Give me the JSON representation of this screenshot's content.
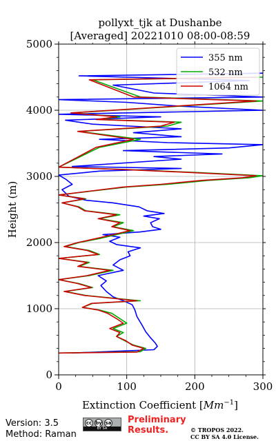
{
  "chart_data": {
    "type": "line",
    "title_line1": "pollyxt_tjk at Dushanbe",
    "title_line2": "[Averaged] 20221010 08:00-08:59",
    "xlabel": "Extinction Coefficient [Mm⁻¹]",
    "ylabel": "Height (m)",
    "xlim": [
      0,
      300
    ],
    "ylim": [
      0,
      5000
    ],
    "x_ticks": [
      "0",
      "100",
      "200",
      "300"
    ],
    "y_ticks": [
      "0",
      "1000",
      "2000",
      "3000",
      "4000",
      "5000"
    ],
    "grid": true,
    "legend_position": "top-right",
    "series": [
      {
        "name": "355 nm",
        "color": "#0000ff",
        "points": [
          [
            20,
            330
          ],
          [
            140,
            380
          ],
          [
            145,
            430
          ],
          [
            142,
            480
          ],
          [
            135,
            560
          ],
          [
            128,
            650
          ],
          [
            122,
            760
          ],
          [
            115,
            880
          ],
          [
            112,
            980
          ],
          [
            108,
            1060
          ],
          [
            95,
            1120
          ],
          [
            80,
            1180
          ],
          [
            70,
            1260
          ],
          [
            62,
            1350
          ],
          [
            70,
            1420
          ],
          [
            58,
            1500
          ],
          [
            95,
            1580
          ],
          [
            80,
            1660
          ],
          [
            90,
            1740
          ],
          [
            105,
            1800
          ],
          [
            102,
            1860
          ],
          [
            120,
            1920
          ],
          [
            85,
            1970
          ],
          [
            75,
            2020
          ],
          [
            90,
            2080
          ],
          [
            65,
            2120
          ],
          [
            120,
            2160
          ],
          [
            150,
            2200
          ],
          [
            138,
            2240
          ],
          [
            135,
            2300
          ],
          [
            148,
            2360
          ],
          [
            125,
            2400
          ],
          [
            155,
            2440
          ],
          [
            130,
            2480
          ],
          [
            118,
            2540
          ],
          [
            80,
            2600
          ],
          [
            40,
            2640
          ],
          [
            15,
            2700
          ],
          [
            5,
            2800
          ],
          [
            20,
            2880
          ],
          [
            10,
            2960
          ],
          [
            0,
            3020
          ],
          [
            60,
            3080
          ],
          [
            180,
            3120
          ],
          [
            20,
            3150
          ],
          [
            180,
            3260
          ],
          [
            140,
            3300
          ],
          [
            240,
            3340
          ],
          [
            95,
            3390
          ],
          [
            250,
            3430
          ],
          [
            300,
            3480
          ],
          [
            160,
            3510
          ],
          [
            60,
            3560
          ],
          [
            180,
            3600
          ],
          [
            110,
            3660
          ],
          [
            180,
            3720
          ],
          [
            50,
            3790
          ],
          [
            10,
            3850
          ],
          [
            150,
            3900
          ],
          [
            0,
            3940
          ],
          [
            300,
            4000
          ],
          [
            180,
            4060
          ],
          [
            100,
            4120
          ],
          [
            0,
            4160
          ],
          [
            300,
            4200
          ],
          [
            140,
            4260
          ],
          [
            80,
            4380
          ],
          [
            280,
            4450
          ],
          [
            30,
            4520
          ],
          [
            300,
            4560
          ]
        ]
      },
      {
        "name": "532 nm",
        "color": "#00aa00",
        "points": [
          [
            0,
            330
          ],
          [
            120,
            350
          ],
          [
            128,
            400
          ],
          [
            110,
            450
          ],
          [
            100,
            500
          ],
          [
            85,
            580
          ],
          [
            95,
            640
          ],
          [
            80,
            700
          ],
          [
            100,
            780
          ],
          [
            90,
            850
          ],
          [
            78,
            930
          ],
          [
            60,
            980
          ],
          [
            35,
            1020
          ],
          [
            50,
            1080
          ],
          [
            120,
            1120
          ],
          [
            40,
            1200
          ],
          [
            10,
            1260
          ],
          [
            50,
            1320
          ],
          [
            30,
            1380
          ],
          [
            0,
            1440
          ],
          [
            45,
            1500
          ],
          [
            80,
            1580
          ],
          [
            30,
            1640
          ],
          [
            45,
            1700
          ],
          [
            0,
            1760
          ],
          [
            60,
            1820
          ],
          [
            45,
            1880
          ],
          [
            10,
            1940
          ],
          [
            30,
            2000
          ],
          [
            60,
            2060
          ],
          [
            85,
            2120
          ],
          [
            110,
            2180
          ],
          [
            80,
            2240
          ],
          [
            95,
            2300
          ],
          [
            60,
            2360
          ],
          [
            90,
            2420
          ],
          [
            40,
            2480
          ],
          [
            30,
            2540
          ],
          [
            5,
            2600
          ],
          [
            40,
            2660
          ],
          [
            0,
            2720
          ],
          [
            100,
            2840
          ],
          [
            160,
            2880
          ],
          [
            220,
            2940
          ],
          [
            280,
            2980
          ],
          [
            300,
            3010
          ],
          [
            200,
            3060
          ],
          [
            110,
            3100
          ],
          [
            0,
            3140
          ],
          [
            60,
            3440
          ],
          [
            120,
            3560
          ],
          [
            30,
            3680
          ],
          [
            160,
            3760
          ],
          [
            180,
            3820
          ],
          [
            60,
            3860
          ],
          [
            90,
            3900
          ],
          [
            20,
            3960
          ],
          [
            300,
            4140
          ],
          [
            120,
            4200
          ],
          [
            50,
            4460
          ],
          [
            300,
            4500
          ]
        ]
      },
      {
        "name": "1064 nm",
        "color": "#cc0000",
        "points": [
          [
            0,
            330
          ],
          [
            115,
            345
          ],
          [
            125,
            400
          ],
          [
            108,
            450
          ],
          [
            98,
            520
          ],
          [
            85,
            580
          ],
          [
            90,
            640
          ],
          [
            75,
            700
          ],
          [
            95,
            780
          ],
          [
            85,
            850
          ],
          [
            72,
            930
          ],
          [
            58,
            980
          ],
          [
            35,
            1020
          ],
          [
            48,
            1080
          ],
          [
            115,
            1120
          ],
          [
            38,
            1200
          ],
          [
            8,
            1260
          ],
          [
            48,
            1320
          ],
          [
            28,
            1380
          ],
          [
            0,
            1440
          ],
          [
            42,
            1500
          ],
          [
            75,
            1580
          ],
          [
            28,
            1640
          ],
          [
            42,
            1700
          ],
          [
            0,
            1760
          ],
          [
            58,
            1820
          ],
          [
            42,
            1880
          ],
          [
            8,
            1940
          ],
          [
            28,
            2000
          ],
          [
            55,
            2060
          ],
          [
            80,
            2120
          ],
          [
            105,
            2180
          ],
          [
            78,
            2240
          ],
          [
            90,
            2300
          ],
          [
            58,
            2360
          ],
          [
            85,
            2420
          ],
          [
            38,
            2480
          ],
          [
            28,
            2540
          ],
          [
            5,
            2600
          ],
          [
            38,
            2660
          ],
          [
            0,
            2720
          ],
          [
            95,
            2840
          ],
          [
            150,
            2880
          ],
          [
            210,
            2940
          ],
          [
            270,
            2980
          ],
          [
            290,
            3010
          ],
          [
            190,
            3060
          ],
          [
            105,
            3100
          ],
          [
            0,
            3140
          ],
          [
            55,
            3440
          ],
          [
            110,
            3560
          ],
          [
            28,
            3680
          ],
          [
            150,
            3760
          ],
          [
            170,
            3820
          ],
          [
            55,
            3860
          ],
          [
            85,
            3900
          ],
          [
            18,
            3960
          ],
          [
            290,
            4140
          ],
          [
            110,
            4200
          ],
          [
            45,
            4460
          ],
          [
            290,
            4500
          ]
        ]
      }
    ]
  },
  "footer": {
    "version": "Version: 3.5",
    "method": "Method: Raman",
    "cc_icons": [
      "cc",
      "by",
      "sa"
    ],
    "cc_label": "BY SA",
    "preliminary_line1": "Preliminary",
    "preliminary_line2": "Results.",
    "copyright_line1": "© TROPOS 2022.",
    "copyright_line2": "CC BY SA 4.0 License."
  }
}
